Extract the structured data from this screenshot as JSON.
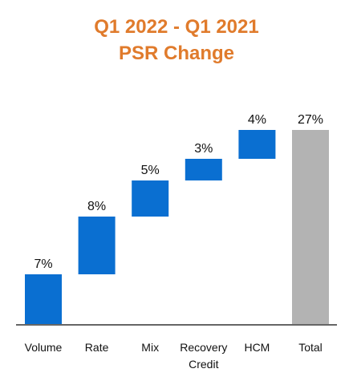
{
  "chart_data": {
    "type": "bar",
    "title": "Q1 2022 - Q1 2021",
    "subtitle": "PSR Change",
    "title_color": "#E07B2C",
    "categories": [
      [
        "Volume"
      ],
      [
        "Rate"
      ],
      [
        "Mix"
      ],
      [
        "Recovery",
        "Credit"
      ],
      [
        "HCM"
      ],
      [
        "Total"
      ]
    ],
    "values": [
      7,
      8,
      5,
      3,
      4,
      27
    ],
    "value_labels": [
      "7%",
      "8%",
      "5%",
      "3%",
      "4%",
      "27%"
    ],
    "is_total": [
      false,
      false,
      false,
      false,
      false,
      true
    ],
    "colors": {
      "increase": "#0A6FD1",
      "total": "#B3B3B3",
      "axis": "#666666"
    },
    "ylim": [
      0,
      27
    ],
    "grid": false,
    "legend": "none"
  }
}
